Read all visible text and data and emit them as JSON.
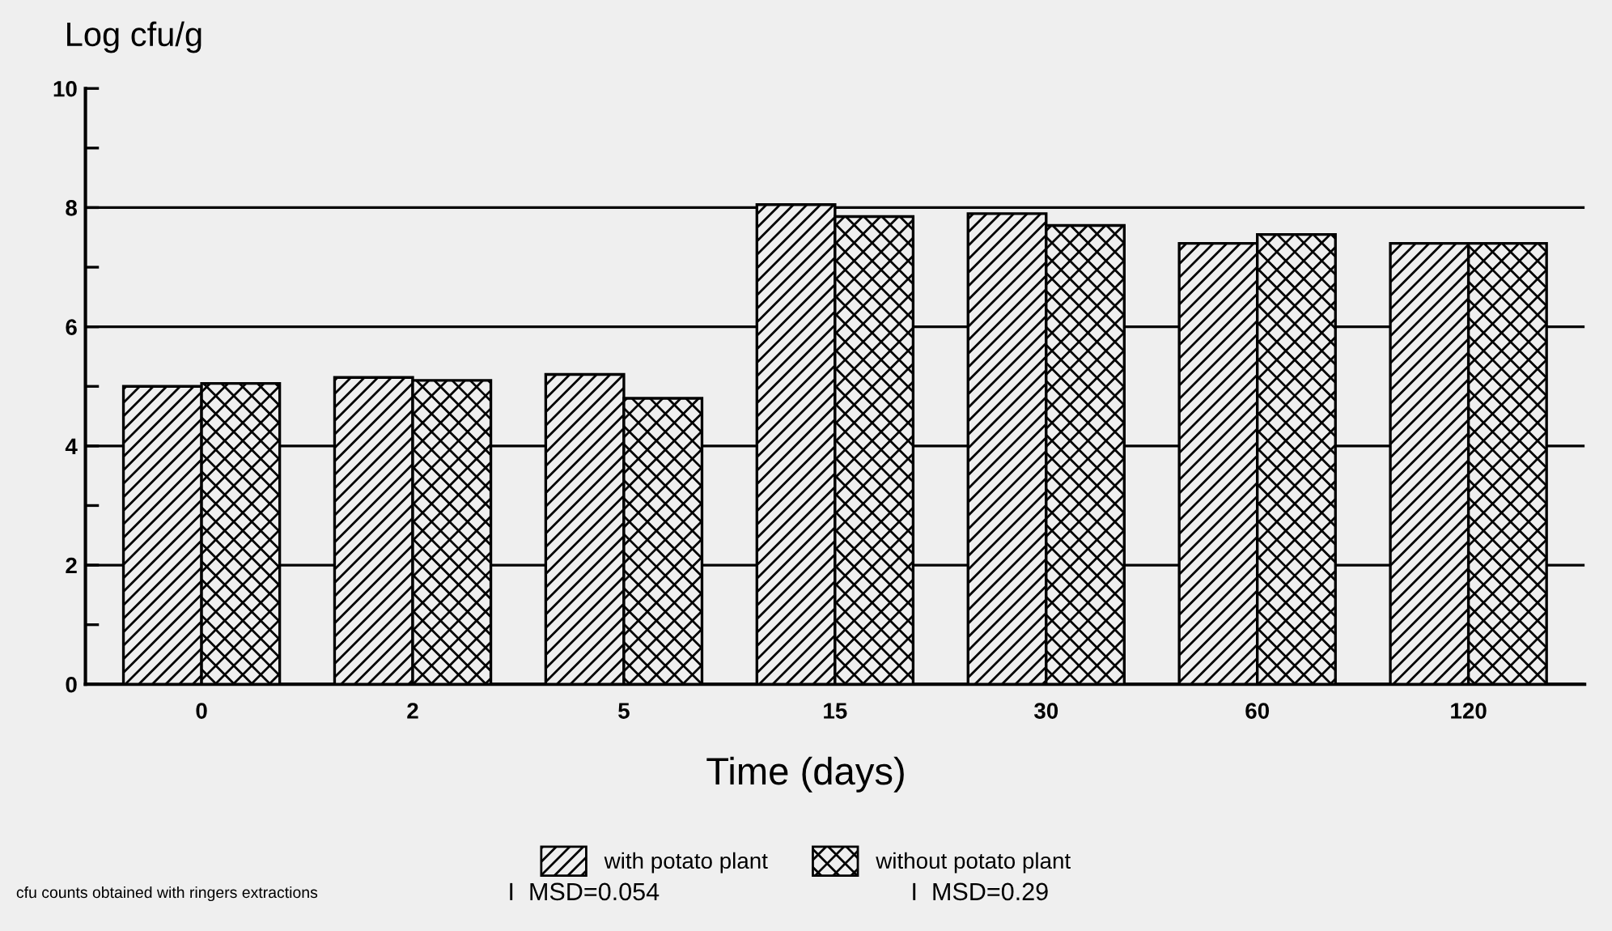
{
  "chart_data": {
    "type": "bar",
    "ylabel": "Log cfu/g",
    "xlabel": "Time (days)",
    "categories": [
      "0",
      "2",
      "5",
      "15",
      "30",
      "60",
      "120"
    ],
    "series": [
      {
        "name": "with potato plant",
        "color": "#000000",
        "values": [
          5.0,
          5.15,
          5.2,
          8.05,
          7.9,
          7.4,
          7.4
        ]
      },
      {
        "name": "without potato plant",
        "color": "#000000",
        "values": [
          5.05,
          5.1,
          4.8,
          7.85,
          7.7,
          7.55,
          7.4
        ]
      }
    ],
    "ylim": [
      0,
      10
    ],
    "yticks": [
      0,
      {
        "value": 1,
        "label": null
      },
      2,
      {
        "value": 3,
        "label": null
      },
      4,
      {
        "value": 5,
        "label": null
      },
      6,
      {
        "value": 7,
        "label": null
      },
      8,
      {
        "value": 9,
        "label": null
      },
      10
    ],
    "grid": "y",
    "legend": "bottom",
    "annotations": [
      "cfu counts obtained with ringers extractions",
      "I  MSD=0.054",
      "I  MSD=0.29"
    ]
  }
}
